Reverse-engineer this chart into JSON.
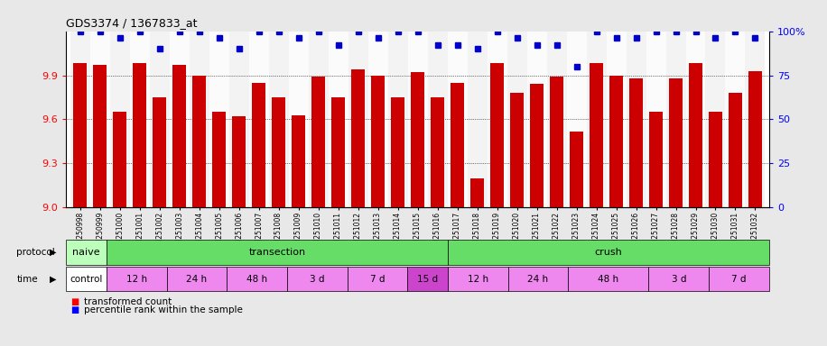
{
  "title": "GDS3374 / 1367833_at",
  "samples": [
    "GSM250998",
    "GSM250999",
    "GSM251000",
    "GSM251001",
    "GSM251002",
    "GSM251003",
    "GSM251004",
    "GSM251005",
    "GSM251006",
    "GSM251007",
    "GSM251008",
    "GSM251009",
    "GSM251010",
    "GSM251011",
    "GSM251012",
    "GSM251013",
    "GSM251014",
    "GSM251015",
    "GSM251016",
    "GSM251017",
    "GSM251018",
    "GSM251019",
    "GSM251020",
    "GSM251021",
    "GSM251022",
    "GSM251023",
    "GSM251024",
    "GSM251025",
    "GSM251026",
    "GSM251027",
    "GSM251028",
    "GSM251029",
    "GSM251030",
    "GSM251031",
    "GSM251032"
  ],
  "bar_values": [
    9.98,
    9.97,
    9.65,
    9.98,
    9.75,
    9.97,
    9.9,
    9.65,
    9.62,
    9.85,
    9.75,
    9.63,
    9.89,
    9.75,
    9.94,
    9.9,
    9.75,
    9.92,
    9.75,
    9.85,
    9.2,
    9.98,
    9.78,
    9.84,
    9.89,
    9.52,
    9.98,
    9.9,
    9.88,
    9.65,
    9.88,
    9.98,
    9.65,
    9.78,
    9.93
  ],
  "percentile_values": [
    100,
    100,
    96,
    100,
    90,
    100,
    100,
    96,
    90,
    100,
    100,
    96,
    100,
    92,
    100,
    96,
    100,
    100,
    92,
    92,
    90,
    100,
    96,
    92,
    92,
    80,
    100,
    96,
    96,
    100,
    100,
    100,
    96,
    100,
    96
  ],
  "bar_color": "#cc0000",
  "percentile_color": "#0000cc",
  "ylim_left": [
    9.0,
    10.2
  ],
  "ylim_right": [
    0,
    100
  ],
  "yticks_left": [
    9.0,
    9.3,
    9.6,
    9.9
  ],
  "yticks_right": [
    0,
    25,
    50,
    75,
    100
  ],
  "bg_color": "#e8e8e8",
  "plot_bg_color": "#ffffff",
  "protocol_groups": [
    {
      "label": "naive",
      "start": 0,
      "end": 2,
      "color": "#bbffbb"
    },
    {
      "label": "transection",
      "start": 2,
      "end": 19,
      "color": "#66dd66"
    },
    {
      "label": "crush",
      "start": 19,
      "end": 35,
      "color": "#66dd66"
    }
  ],
  "time_groups": [
    {
      "label": "control",
      "start": 0,
      "end": 2,
      "color": "#ffffff"
    },
    {
      "label": "12 h",
      "start": 2,
      "end": 5,
      "color": "#ee88ee"
    },
    {
      "label": "24 h",
      "start": 5,
      "end": 8,
      "color": "#ee88ee"
    },
    {
      "label": "48 h",
      "start": 8,
      "end": 11,
      "color": "#ee88ee"
    },
    {
      "label": "3 d",
      "start": 11,
      "end": 14,
      "color": "#ee88ee"
    },
    {
      "label": "7 d",
      "start": 14,
      "end": 17,
      "color": "#ee88ee"
    },
    {
      "label": "15 d",
      "start": 17,
      "end": 19,
      "color": "#cc44cc"
    },
    {
      "label": "12 h",
      "start": 19,
      "end": 22,
      "color": "#ee88ee"
    },
    {
      "label": "24 h",
      "start": 22,
      "end": 25,
      "color": "#ee88ee"
    },
    {
      "label": "48 h",
      "start": 25,
      "end": 29,
      "color": "#ee88ee"
    },
    {
      "label": "3 d",
      "start": 29,
      "end": 32,
      "color": "#ee88ee"
    },
    {
      "label": "7 d",
      "start": 32,
      "end": 35,
      "color": "#ee88ee"
    }
  ]
}
